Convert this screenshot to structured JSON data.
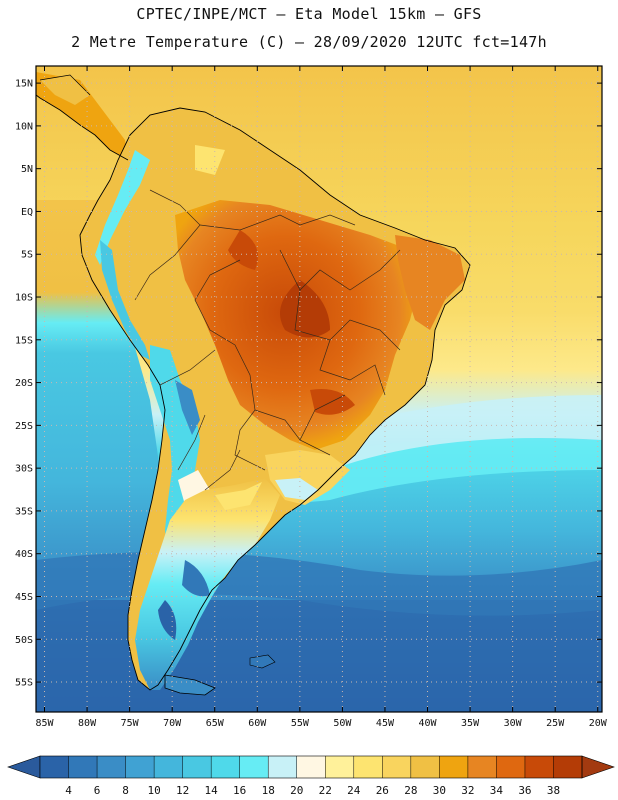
{
  "title": {
    "line1": "CPTEC/INPE/MCT –  Eta Model 15km – GFS",
    "line2": "2 Metre Temperature (C) – 28/09/2020 12UTC fct=147h"
  },
  "axes": {
    "lat_labels": [
      "15N",
      "10N",
      "5N",
      "EQ",
      "5S",
      "10S",
      "15S",
      "20S",
      "25S",
      "30S",
      "35S",
      "40S",
      "45S",
      "50S",
      "55S"
    ],
    "lat_values": [
      15,
      10,
      5,
      0,
      -5,
      -10,
      -15,
      -20,
      -25,
      -30,
      -35,
      -40,
      -45,
      -50,
      -55
    ],
    "lon_labels": [
      "85W",
      "80W",
      "75W",
      "70W",
      "65W",
      "60W",
      "55W",
      "50W",
      "45W",
      "40W",
      "35W",
      "30W",
      "25W",
      "20W"
    ],
    "lon_values": [
      -85,
      -80,
      -75,
      -70,
      -65,
      -60,
      -55,
      -50,
      -45,
      -40,
      -35,
      -30,
      -25,
      -20
    ],
    "lat_range": [
      -58.5,
      17
    ],
    "lon_range": [
      -86,
      -19.5
    ]
  },
  "colorbar": {
    "labels": [
      "4",
      "6",
      "8",
      "10",
      "12",
      "14",
      "16",
      "18",
      "20",
      "22",
      "24",
      "26",
      "28",
      "30",
      "32",
      "34",
      "36",
      "38"
    ],
    "colors": [
      "#2a63a8",
      "#3178b8",
      "#3a8dc6",
      "#40a2d3",
      "#44b6dc",
      "#49c8e2",
      "#4fd9ea",
      "#66ecf4",
      "#c8f1f7",
      "#fff7e3",
      "#fff19a",
      "#fde470",
      "#f9d45e",
      "#f0c044",
      "#efa410",
      "#e78522",
      "#df6810",
      "#c84a08",
      "#b43c06"
    ],
    "min_color": "#2a5a9c",
    "max_color": "#a33a10"
  },
  "map_colors": {
    "ocean_deep": "#2b66ab",
    "ocean_mid": "#3a8dc6",
    "ocean_light": "#44b6dc",
    "ocean_cyan": "#4fd9ea",
    "tropical_atlantic": "#f6d65c",
    "tropical_north": "#f3c44a",
    "land_warm": "#efa410",
    "land_hot": "#df6810",
    "land_hottest": "#c84a08",
    "andes_cool": "#66ecf4",
    "andes_cold": "#3a8dc6",
    "pale": "#c8f1f7",
    "coast": "#000000",
    "grid": "#c9b7b0"
  }
}
